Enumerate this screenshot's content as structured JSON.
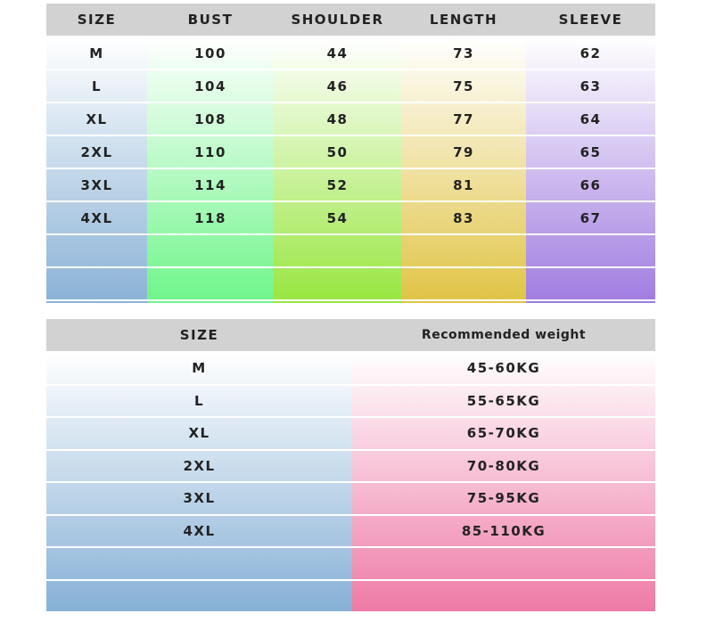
{
  "size_table": {
    "header": [
      "SIZE",
      "BUST",
      "SHOULDER",
      "LENGTH",
      "SLEEVE"
    ],
    "rows": [
      [
        "M",
        "100",
        "44",
        "73",
        "62"
      ],
      [
        "L",
        "104",
        "46",
        "75",
        "63"
      ],
      [
        "XL",
        "108",
        "48",
        "77",
        "64"
      ],
      [
        "2XL",
        "110",
        "50",
        "79",
        "65"
      ],
      [
        "3XL",
        "114",
        "52",
        "81",
        "66"
      ],
      [
        "4XL",
        "118",
        "54",
        "83",
        "67"
      ]
    ]
  },
  "weight_table": {
    "header": [
      "SIZE",
      "Recommended weight"
    ],
    "rows": [
      [
        "M",
        "45-60KG"
      ],
      [
        "L",
        "55-65KG"
      ],
      [
        "XL",
        "65-70KG"
      ],
      [
        "2XL",
        "70-80KG"
      ],
      [
        "3XL",
        "75-95KG"
      ],
      [
        "4XL",
        "85-110KG"
      ]
    ]
  }
}
